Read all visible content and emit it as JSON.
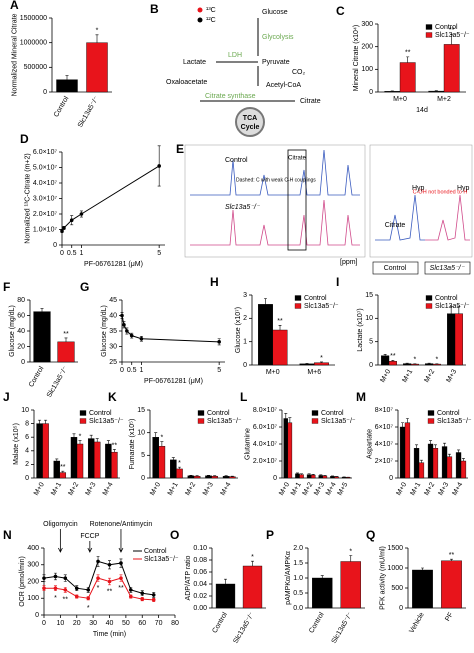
{
  "chart_data": [
    {
      "panel": "A",
      "type": "bar",
      "ylabel": "Normalized Mineral Citrate",
      "categories": [
        "Control",
        "Slc13a5⁻/⁻"
      ],
      "values": [
        250000,
        1000000
      ],
      "errors": [
        80000,
        160000
      ],
      "colors": [
        "#000000",
        "#e8141b"
      ],
      "annotations": [
        null,
        "*"
      ],
      "ylim": [
        0,
        1500000
      ],
      "yticks": [
        0,
        500000,
        1000000,
        1500000
      ],
      "rotate_labels": true
    },
    {
      "panel": "C",
      "type": "bar",
      "ylabel": "Mineral Citrate (x10⁴)",
      "xlabel": "14d",
      "categories": [
        "M+0",
        "M+2"
      ],
      "series": [
        {
          "name": "Control",
          "color": "#000000",
          "values": [
            3,
            4
          ],
          "errors": [
            2,
            2
          ]
        },
        {
          "name": "Slc13a5⁻/⁻",
          "color": "#e8141b",
          "values": [
            130,
            210
          ],
          "errors": [
            25,
            45
          ],
          "annotations": [
            "**",
            "**"
          ]
        }
      ],
      "ylim": [
        0,
        300
      ],
      "yticks": [
        0,
        100,
        200,
        300
      ],
      "legend": "upper right"
    },
    {
      "panel": "D",
      "type": "line",
      "ylabel": "Normalized ¹³C-Citrate (m+2)",
      "xlabel": "PF-06761281 (μM)",
      "x": [
        0,
        0.1,
        0.5,
        1,
        5
      ],
      "values": [
        9000000,
        11000000,
        16000000,
        20000000,
        51000000
      ],
      "errors": [
        1000000,
        1000000,
        3000000,
        2000000,
        13000000
      ],
      "color": "#000000",
      "xlim": [
        0,
        5.3
      ],
      "xticks": [
        0,
        0.5,
        1,
        5
      ],
      "ylim": [
        0,
        60000000
      ],
      "yticks": [
        0,
        {
          "value": 10000000,
          "label": "1.0×10⁷"
        },
        {
          "value": 20000000,
          "label": "2.0×10⁷"
        },
        {
          "value": 30000000,
          "label": "3.0×10⁷"
        },
        {
          "value": 40000000,
          "label": "4.0×10⁷"
        },
        {
          "value": 50000000,
          "label": "5.0×10⁷"
        },
        {
          "value": 60000000,
          "label": "6.0×10⁷"
        }
      ]
    },
    {
      "panel": "F",
      "type": "bar",
      "ylabel": "Glucose (mg/dL)",
      "categories": [
        "Control",
        "Slc13a5⁻/⁻"
      ],
      "values": [
        65,
        26
      ],
      "errors": [
        4,
        5
      ],
      "colors": [
        "#000000",
        "#e8141b"
      ],
      "annotations": [
        null,
        "**"
      ],
      "ylim": [
        0,
        80
      ],
      "yticks": [
        0,
        20,
        40,
        60,
        80
      ],
      "rotate_labels": true
    },
    {
      "panel": "G",
      "type": "line",
      "ylabel": "Glucose (mg/dL)",
      "xlabel": "PF-06761281 (μM)",
      "x": [
        0,
        0.1,
        0.25,
        0.5,
        1,
        5
      ],
      "values": [
        40,
        37,
        35,
        33.5,
        32.5,
        31.5
      ],
      "errors": [
        1,
        1,
        1,
        0.8,
        0.8,
        1
      ],
      "color": "#000000",
      "xlim": [
        0,
        5.3
      ],
      "xticks": [
        0,
        0.5,
        1,
        5
      ],
      "ylim": [
        25,
        45
      ],
      "yticks": [
        25,
        30,
        35,
        40,
        45
      ]
    },
    {
      "panel": "H",
      "type": "bar",
      "ylabel": "Glucose (x10⁷)",
      "categories": [
        "M+0",
        "M+6"
      ],
      "series": [
        {
          "name": "Control",
          "color": "#000000",
          "values": [
            2.6,
            0.05
          ],
          "errors": [
            0.25,
            0.02
          ]
        },
        {
          "name": "Slc13a5⁻/⁻",
          "color": "#e8141b",
          "values": [
            1.5,
            0.1
          ],
          "errors": [
            0.2,
            0.03
          ],
          "annotations": [
            "**",
            "*"
          ]
        }
      ],
      "ylim": [
        0,
        3
      ],
      "yticks": [
        0,
        1,
        2,
        3
      ],
      "legend": "upper right"
    },
    {
      "panel": "I",
      "type": "bar",
      "ylabel": "Lactate (x10⁷)",
      "categories": [
        "M+0",
        "M+1",
        "M+2",
        "M+3"
      ],
      "series": [
        {
          "name": "Control",
          "color": "#000000",
          "values": [
            2.0,
            0.3,
            0.3,
            11
          ],
          "errors": [
            0.3,
            0.1,
            0.1,
            1.5
          ]
        },
        {
          "name": "Slc13a5⁻/⁻",
          "color": "#e8141b",
          "values": [
            0.8,
            0.2,
            0.2,
            11
          ],
          "errors": [
            0.2,
            0.05,
            0.05,
            1.5
          ],
          "annotations": [
            "**",
            "*",
            "*",
            null
          ]
        }
      ],
      "ylim": [
        0,
        15
      ],
      "yticks": [
        0,
        5,
        10,
        15
      ],
      "legend": "upper right",
      "rotate_labels": true
    },
    {
      "panel": "J",
      "type": "bar",
      "ylabel": "Malate (x10⁵)",
      "categories": [
        "M+0",
        "M+1",
        "M+2",
        "M+3",
        "M+4"
      ],
      "series": [
        {
          "name": "Control",
          "color": "#000000",
          "values": [
            8,
            2.5,
            6,
            5.8,
            5
          ],
          "errors": [
            0.5,
            0.3,
            0.5,
            0.5,
            0.5
          ]
        },
        {
          "name": "Slc13a5⁻/⁻",
          "color": "#e8141b",
          "values": [
            8,
            0.8,
            5,
            5.3,
            3.8
          ],
          "errors": [
            0.5,
            0.2,
            0.5,
            0.5,
            0.4
          ],
          "annotations": [
            null,
            "**",
            "*",
            null,
            "**"
          ]
        }
      ],
      "ylim": [
        0,
        10
      ],
      "yticks": [
        0,
        2,
        4,
        6,
        8,
        10
      ],
      "legend": "upper right",
      "rotate_labels": true
    },
    {
      "panel": "K",
      "type": "bar",
      "ylabel": "Fumarate (x10⁵)",
      "categories": [
        "M+0",
        "M+1",
        "M+2",
        "M+3",
        "M+4"
      ],
      "series": [
        {
          "name": "Control",
          "color": "#000000",
          "values": [
            9,
            4,
            0.5,
            0.5,
            0.4
          ],
          "errors": [
            1,
            0.5,
            0.1,
            0.1,
            0.1
          ]
        },
        {
          "name": "Slc13a5⁻/⁻",
          "color": "#e8141b",
          "values": [
            7,
            2,
            0.4,
            0.4,
            0.3
          ],
          "errors": [
            1,
            0.4,
            0.1,
            0.1,
            0.1
          ],
          "annotations": [
            "*",
            "*",
            null,
            null,
            null
          ]
        }
      ],
      "ylim": [
        0,
        15
      ],
      "yticks": [
        0,
        5,
        10,
        15
      ],
      "legend": "upper right",
      "rotate_labels": true
    },
    {
      "panel": "L",
      "type": "bar",
      "ylabel": "Glutamine",
      "categories": [
        "M+0",
        "M+1",
        "M+2",
        "M+3",
        "M+4",
        "M+5"
      ],
      "series": [
        {
          "name": "Control",
          "color": "#000000",
          "values": [
            70000000,
            5000000,
            4000000,
            3000000,
            2000000,
            1000000
          ],
          "errors": [
            6000000,
            1000000,
            1000000,
            800000,
            500000,
            300000
          ]
        },
        {
          "name": "Slc13a5⁻/⁻",
          "color": "#e8141b",
          "values": [
            65000000,
            4000000,
            3500000,
            2500000,
            1500000,
            800000
          ],
          "errors": [
            6000000,
            1000000,
            800000,
            600000,
            400000,
            200000
          ]
        }
      ],
      "ylim": [
        0,
        80000000
      ],
      "yticks": [
        0,
        {
          "value": 20000000,
          "label": "2.0×10⁷"
        },
        {
          "value": 40000000,
          "label": "4.0×10⁷"
        },
        {
          "value": 60000000,
          "label": "6.0×10⁷"
        },
        {
          "value": 80000000,
          "label": "8.0×10⁷"
        }
      ],
      "legend": "upper right",
      "rotate_labels": true
    },
    {
      "panel": "M",
      "type": "bar",
      "ylabel": "Aspartate",
      "categories": [
        "M+0",
        "M+1",
        "M+2",
        "M+3",
        "M+4"
      ],
      "series": [
        {
          "name": "Control",
          "color": "#000000",
          "values": [
            60000000,
            35000000,
            40000000,
            37000000,
            30000000
          ],
          "errors": [
            5000000,
            4000000,
            4000000,
            4000000,
            3000000
          ]
        },
        {
          "name": "Slc13a5⁻/⁻",
          "color": "#e8141b",
          "values": [
            65000000,
            18000000,
            35000000,
            25000000,
            20000000
          ],
          "errors": [
            5000000,
            3000000,
            4000000,
            3000000,
            3000000
          ]
        }
      ],
      "ylim": [
        0,
        80000000
      ],
      "yticks": [
        0,
        {
          "value": 20000000,
          "label": "2×10⁷"
        },
        {
          "value": 40000000,
          "label": "4×10⁷"
        },
        {
          "value": 60000000,
          "label": "6×10⁷"
        },
        {
          "value": 80000000,
          "label": "8×10⁷"
        }
      ],
      "legend": "upper right",
      "rotate_labels": true
    },
    {
      "panel": "N",
      "type": "line",
      "ylabel": "OCR (pmol/min)",
      "xlabel": "Time (min)",
      "x": [
        0,
        7,
        13,
        20,
        27,
        33,
        40,
        47,
        53,
        60,
        67
      ],
      "series": [
        {
          "name": "Control",
          "color": "#000000",
          "values": [
            220,
            230,
            220,
            160,
            150,
            320,
            300,
            310,
            150,
            130,
            120
          ],
          "errors": [
            20,
            20,
            20,
            15,
            15,
            30,
            25,
            25,
            15,
            15,
            15
          ]
        },
        {
          "name": "Slc13a5⁻/⁻",
          "color": "#e8141b",
          "values": [
            160,
            160,
            150,
            110,
            100,
            220,
            200,
            220,
            110,
            95,
            90
          ],
          "errors": [
            15,
            15,
            15,
            10,
            10,
            20,
            20,
            20,
            10,
            10,
            10
          ],
          "annotations": [
            null,
            "*",
            "**",
            null,
            "*",
            "*",
            "**",
            "**",
            null,
            null,
            null
          ]
        }
      ],
      "treatments": [
        {
          "text": "Oligomycin",
          "x": 10
        },
        {
          "text": "FCCP",
          "x": 28
        },
        {
          "text": "Rotenone/Antimycin",
          "x": 47
        }
      ],
      "xlim": [
        0,
        80
      ],
      "xticks": [
        0,
        10,
        20,
        30,
        40,
        50,
        60,
        70,
        80
      ],
      "ylim": [
        0,
        400
      ],
      "yticks": [
        0,
        100,
        200,
        300,
        400
      ],
      "legend": "upper right"
    },
    {
      "panel": "O",
      "type": "bar",
      "ylabel": "ADP/ATP ratio",
      "categories": [
        "Control",
        "Slc13a5⁻/⁻"
      ],
      "values": [
        0.04,
        0.07
      ],
      "errors": [
        0.008,
        0.008
      ],
      "colors": [
        "#000000",
        "#e8141b"
      ],
      "annotations": [
        null,
        "*"
      ],
      "ylim": [
        0,
        0.1
      ],
      "yticks": [
        {
          "value": 0,
          "label": "0.00"
        },
        {
          "value": 0.02,
          "label": "0.02"
        },
        {
          "value": 0.04,
          "label": "0.04"
        },
        {
          "value": 0.06,
          "label": "0.06"
        },
        {
          "value": 0.08,
          "label": "0.08"
        },
        {
          "value": 0.1,
          "label": "0.10"
        }
      ],
      "rotate_labels": true
    },
    {
      "panel": "P",
      "type": "bar",
      "ylabel": "pAMPKα/AMPKα",
      "categories": [
        "Control",
        "Slc13a5⁻/⁻"
      ],
      "values": [
        1.0,
        1.55
      ],
      "errors": [
        0.08,
        0.2
      ],
      "colors": [
        "#000000",
        "#e8141b"
      ],
      "annotations": [
        null,
        "*"
      ],
      "ylim": [
        0,
        2
      ],
      "yticks": [
        {
          "value": 0,
          "label": "0.0"
        },
        {
          "value": 0.5,
          "label": "0.5"
        },
        {
          "value": 1,
          "label": "1.0"
        },
        {
          "value": 1.5,
          "label": "1.5"
        },
        {
          "value": 2,
          "label": "2.0"
        }
      ],
      "rotate_labels": true
    },
    {
      "panel": "Q",
      "type": "bar",
      "ylabel": "PFK activity (mU/ml)",
      "categories": [
        "Vehicle",
        "PF"
      ],
      "values": [
        950,
        1180
      ],
      "errors": [
        50,
        40
      ],
      "colors": [
        "#000000",
        "#e8141b"
      ],
      "annotations": [
        null,
        "**"
      ],
      "ylim": [
        0,
        1500
      ],
      "yticks": [
        0,
        500,
        1000,
        1500
      ],
      "rotate_labels": true
    }
  ],
  "diagram_b": {
    "panel": "B",
    "legend_13c": "¹³C",
    "legend_12c": "¹²C",
    "glucose": "Glucose",
    "glycolysis": "Glycolysis",
    "ldh": "LDH",
    "lactate": "Lactate",
    "pyruvate": "Pyruvate",
    "co2": "CO₂",
    "acetyl_coa": "Acetyl-CoA",
    "oxaloacetate": "Oxaloacetate",
    "citrate_synthase": "Citrate synthase",
    "citrate": "Citrate",
    "tca": "TCA",
    "cycle": "Cycle"
  },
  "diagram_e": {
    "panel": "E",
    "control": "Control",
    "knockout": "Slc13a5⁻/⁻",
    "citrate": "Citrate",
    "note": "Dashed: C with weak C-H couplings",
    "ppm": "[ppm]",
    "hyp": "Hyp",
    "hyp2": "Hyp",
    "citrate_inset": "Citrate",
    "coh": "C-OH not bonded to H",
    "inset_control": "Control",
    "inset_knockout": "Slc13a5⁻/⁻"
  }
}
